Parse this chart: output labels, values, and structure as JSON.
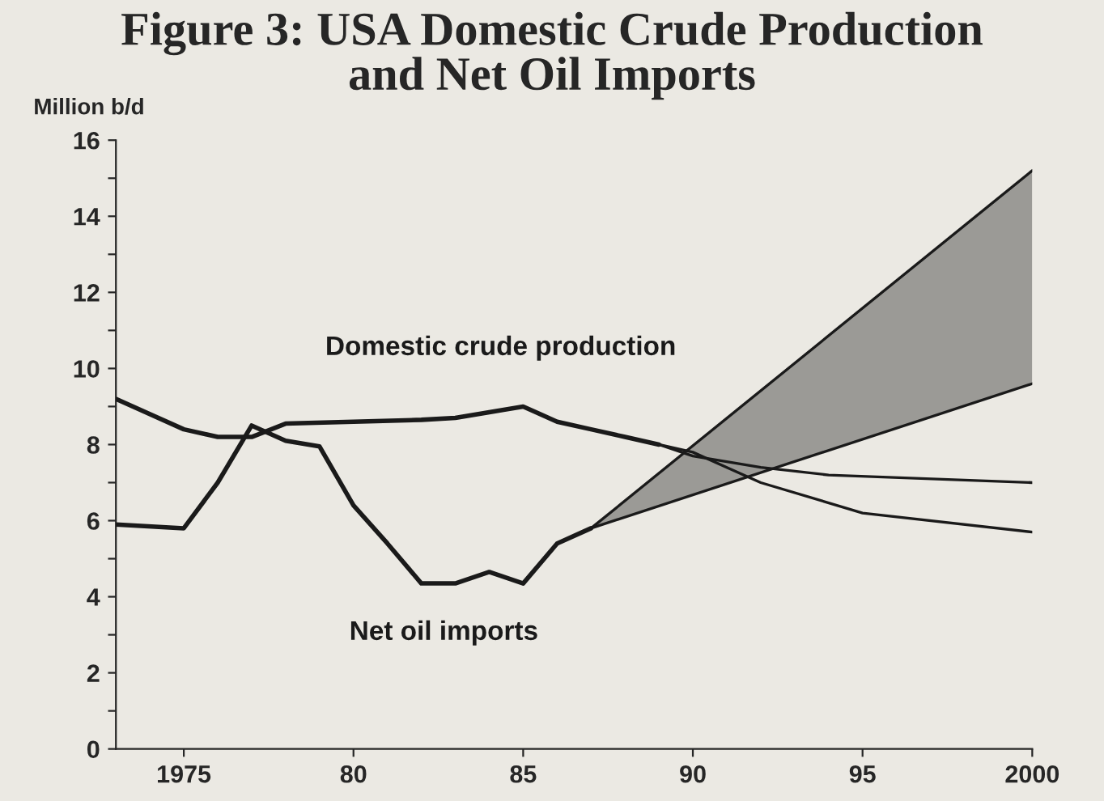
{
  "chart_data": {
    "type": "line",
    "title": "Figure 3: USA Domestic Crude Production\nand Net Oil Imports",
    "ylabel": "Million b/d",
    "series": [
      {
        "name": "Domestic crude production",
        "color": "#1a1a1a",
        "x": [
          1973,
          1975,
          1976,
          1977,
          1978,
          1980,
          1982,
          1983,
          1984,
          1985,
          1986,
          1987,
          1988,
          1989
        ],
        "values": [
          9.2,
          8.4,
          8.2,
          8.2,
          8.55,
          8.6,
          8.65,
          8.7,
          8.85,
          9.0,
          8.6,
          8.4,
          8.2,
          8.0
        ]
      },
      {
        "color": "#1a1a1a",
        "x": [
          1989,
          1990,
          1992,
          1994,
          2000
        ],
        "values": [
          8.0,
          7.7,
          7.4,
          7.2,
          7.0
        ]
      },
      {
        "color": "#1a1a1a",
        "x": [
          1989,
          1990,
          1991,
          1992,
          1995,
          2000
        ],
        "values": [
          8.0,
          7.8,
          7.4,
          7.0,
          6.2,
          5.7
        ]
      },
      {
        "name": "Net oil imports",
        "color": "#1a1a1a",
        "x": [
          1973,
          1975,
          1976,
          1977,
          1978,
          1979,
          1980,
          1981,
          1982,
          1983,
          1984,
          1985,
          1986,
          1987
        ],
        "values": [
          5.9,
          5.8,
          7.0,
          8.5,
          8.1,
          7.95,
          6.4,
          5.4,
          4.35,
          4.35,
          4.65,
          4.35,
          5.4,
          5.8
        ]
      },
      {
        "color": "#1a1a1a",
        "x": [
          1987,
          2000
        ],
        "values": [
          5.8,
          15.2
        ],
        "lower": [
          5.8,
          9.6
        ],
        "upper": [
          5.8,
          15.2
        ]
      },
      {
        "color": "#1a1a1a",
        "x": [
          1987,
          2000
        ],
        "values": [
          5.8,
          9.6
        ]
      }
    ],
    "xlim": [
      1973,
      2000
    ],
    "ylim": [
      0,
      16
    ],
    "xticks": [
      {
        "value": 1975,
        "label": "1975"
      },
      {
        "value": 1980,
        "label": "80"
      },
      {
        "value": 1985,
        "label": "85"
      },
      {
        "value": 1990,
        "label": "90"
      },
      {
        "value": 1995,
        "label": "95"
      },
      {
        "value": 2000,
        "label": "2000"
      }
    ],
    "yticks": [
      0,
      {
        "value": 1,
        "label": null
      },
      2,
      {
        "value": 3,
        "label": null
      },
      4,
      {
        "value": 5,
        "label": null
      },
      6,
      {
        "value": 7,
        "label": null
      },
      8,
      {
        "value": 9,
        "label": null
      },
      10,
      {
        "value": 11,
        "label": null
      },
      12,
      {
        "value": 13,
        "label": null
      },
      14,
      {
        "value": 15,
        "label": null
      },
      16
    ],
    "grid": false,
    "legend": false,
    "marker": "none",
    "line_style": "solid"
  }
}
